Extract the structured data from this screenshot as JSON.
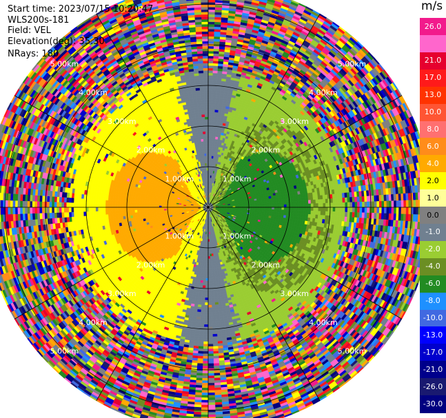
{
  "header": {
    "start_time": "Start time: 2023/07/15 10:20:47",
    "instrument": "WLS200s-181",
    "field": "Field: VEL",
    "elevation": "Elevation(deg): 35.30",
    "nrays": "NRays: 180"
  },
  "colorbar": {
    "unit": "m/s",
    "segments": [
      {
        "color": "#f21a8c",
        "label": "26.0",
        "dark": false
      },
      {
        "color": "#ff66cc",
        "label": "",
        "dark": false
      },
      {
        "color": "#e6002e",
        "label": "21.0",
        "dark": false
      },
      {
        "color": "#ff1a1a",
        "label": "17.0",
        "dark": false
      },
      {
        "color": "#ff3300",
        "label": "13.0",
        "dark": false
      },
      {
        "color": "#ff5533",
        "label": "10.0",
        "dark": false
      },
      {
        "color": "#ff7070",
        "label": "8.0",
        "dark": false
      },
      {
        "color": "#ff8c1a",
        "label": "6.0",
        "dark": false
      },
      {
        "color": "#ffaa00",
        "label": "4.0",
        "dark": false
      },
      {
        "color": "#ffff00",
        "label": "2.0",
        "dark": true
      },
      {
        "color": "#ffff99",
        "label": "1.0",
        "dark": true
      },
      {
        "color": "#808080",
        "label": "0.0",
        "dark": true
      },
      {
        "color": "#708090",
        "label": "-1.0",
        "dark": false
      },
      {
        "color": "#9acd32",
        "label": "-2.0",
        "dark": false
      },
      {
        "color": "#6b8e23",
        "label": "-4.0",
        "dark": false
      },
      {
        "color": "#228b22",
        "label": "-6.0",
        "dark": false
      },
      {
        "color": "#1e90ff",
        "label": "-8.0",
        "dark": false
      },
      {
        "color": "#4169e1",
        "label": "-10.0",
        "dark": false
      },
      {
        "color": "#0000ff",
        "label": "-13.0",
        "dark": false
      },
      {
        "color": "#0000cd",
        "label": "-17.0",
        "dark": false
      },
      {
        "color": "#00008b",
        "label": "-21.0",
        "dark": false
      },
      {
        "color": "#191970",
        "label": "-26.0",
        "dark": false
      },
      {
        "color": "#000080",
        "label": "-30.0",
        "dark": false
      }
    ]
  },
  "chart_data": {
    "type": "heatmap",
    "field": "VEL",
    "projection": "polar PPI",
    "n_rays": 180,
    "elevation_deg": 35.3,
    "range_km": [
      0,
      5.5
    ],
    "range_ring_labels": [
      "1.00km",
      "2.00km",
      "3.00km",
      "4.00km",
      "5.00km"
    ],
    "radials_deg": [
      0,
      30,
      60,
      90,
      120,
      150,
      180,
      210,
      240,
      270,
      300,
      330
    ],
    "colorbar_ticks": [
      26.0,
      21.0,
      17.0,
      13.0,
      10.0,
      8.0,
      6.0,
      4.0,
      2.0,
      1.0,
      0.0,
      -1.0,
      -2.0,
      -4.0,
      -6.0,
      -8.0,
      -10.0,
      -13.0,
      -17.0,
      -21.0,
      -26.0,
      -30.0
    ],
    "grid": true
  },
  "palette": {
    "noise_colors": [
      "#ff66cc",
      "#f21a8c",
      "#ff1a1a",
      "#ffff00",
      "#ffaa00",
      "#0000cd",
      "#000080",
      "#191970",
      "#1e90ff",
      "#228b22",
      "#9acd32",
      "#708090",
      "#4169e1",
      "#e6002e",
      "#6b8e23",
      "#808080",
      "#ff8c1a"
    ],
    "pos_far": "#ffff00",
    "pos_near": "#ffaa00",
    "zero": "#708090",
    "neg_far": "#9acd32",
    "neg_mid": "#6b8e23",
    "neg_near": "#228b22"
  }
}
